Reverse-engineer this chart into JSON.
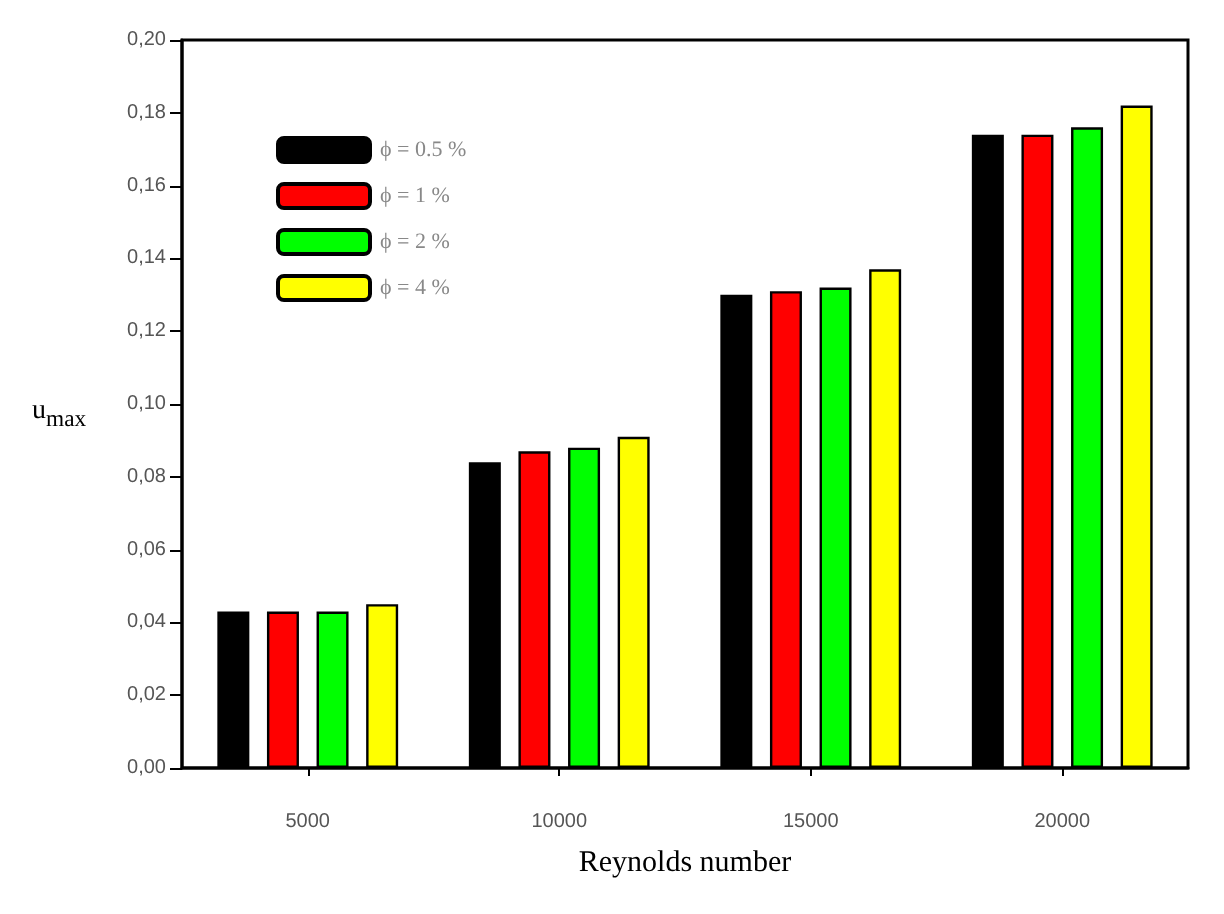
{
  "chart_data": {
    "type": "bar",
    "xlabel": "Reynolds number",
    "ylabel": "u$_{max}$",
    "categories": [
      "5000",
      "10000",
      "15000",
      "20000"
    ],
    "series": [
      {
        "name": "ϕ = 0.5 %",
        "color": "#000000",
        "values": [
          0.043,
          0.084,
          0.13,
          0.174
        ]
      },
      {
        "name": "ϕ = 1 %",
        "color": "#ff0000",
        "values": [
          0.043,
          0.087,
          0.131,
          0.174
        ]
      },
      {
        "name": "ϕ = 2 %",
        "color": "#00ff00",
        "values": [
          0.043,
          0.088,
          0.132,
          0.176
        ]
      },
      {
        "name": "ϕ = 4 %",
        "color": "#ffff00",
        "values": [
          0.045,
          0.091,
          0.137,
          0.182
        ]
      }
    ],
    "ylim": [
      0,
      0.2
    ],
    "yticks": [
      {
        "value": 0,
        "label": "0,00"
      },
      {
        "value": 0.02,
        "label": "0,02"
      },
      {
        "value": 0.04,
        "label": "0,04"
      },
      {
        "value": 0.06,
        "label": "0,06"
      },
      {
        "value": 0.08,
        "label": "0,08"
      },
      {
        "value": 0.1,
        "label": "0,10"
      },
      {
        "value": 0.12,
        "label": "0,12"
      },
      {
        "value": 0.14,
        "label": "0,14"
      },
      {
        "value": 0.16,
        "label": "0,16"
      },
      {
        "value": 0.18,
        "label": "0,18"
      },
      {
        "value": 0.2,
        "label": "0,20"
      }
    ],
    "legend": "top left",
    "grid": false
  }
}
